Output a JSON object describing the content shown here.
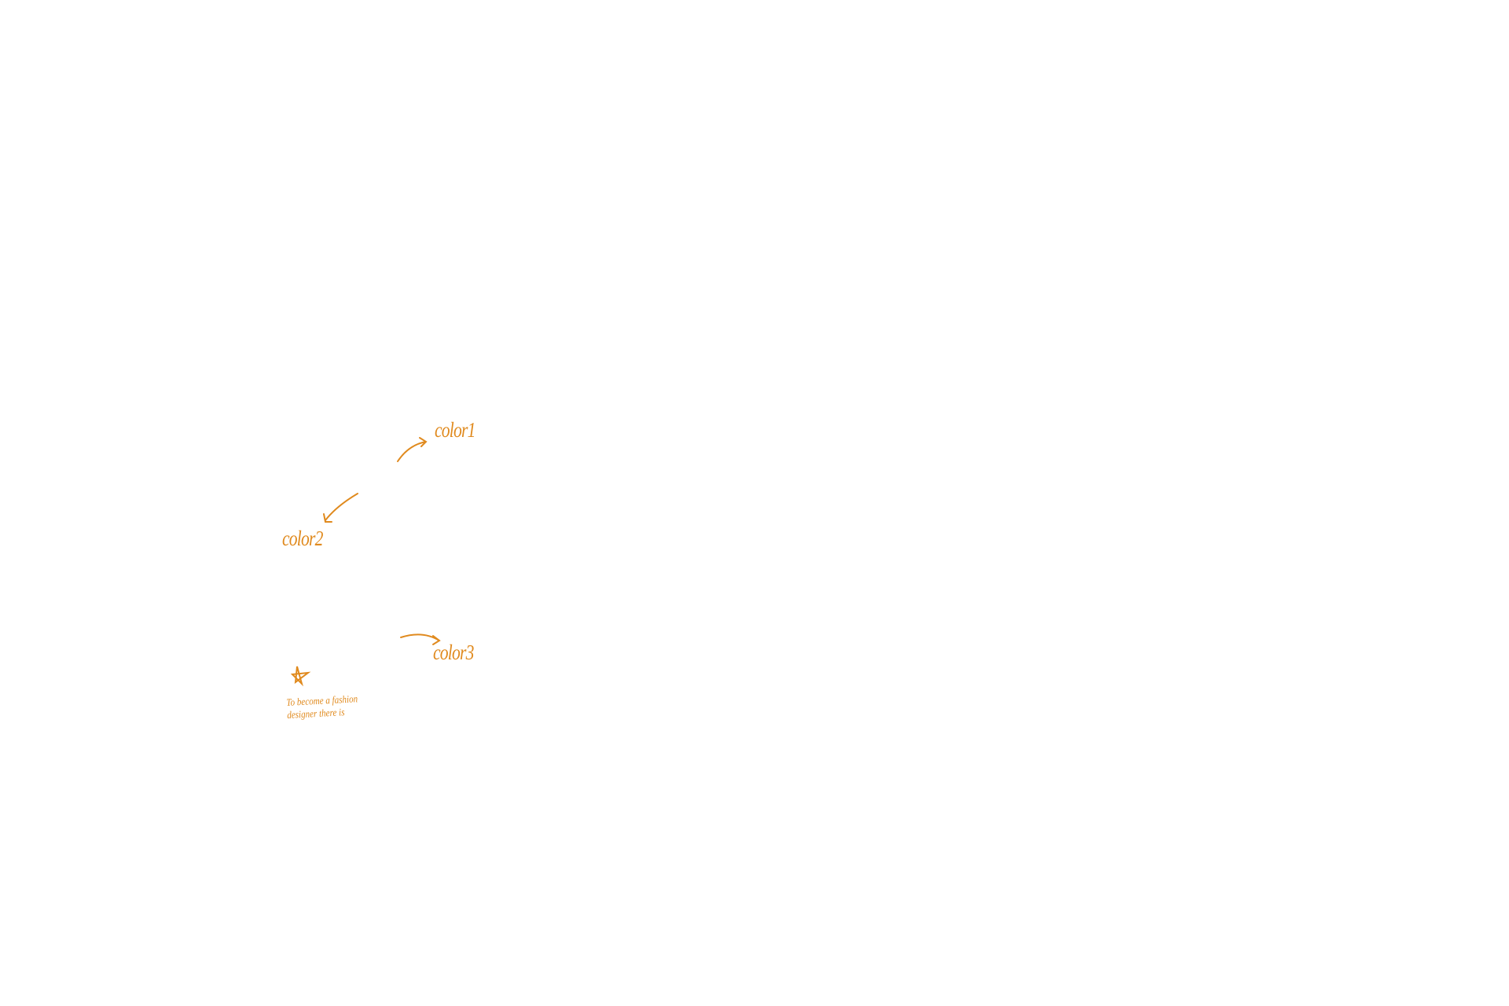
{
  "annotations": {
    "labels": [
      "color1",
      "color2",
      "color3"
    ],
    "note": [
      "To become a fashion",
      "designer there is"
    ]
  }
}
